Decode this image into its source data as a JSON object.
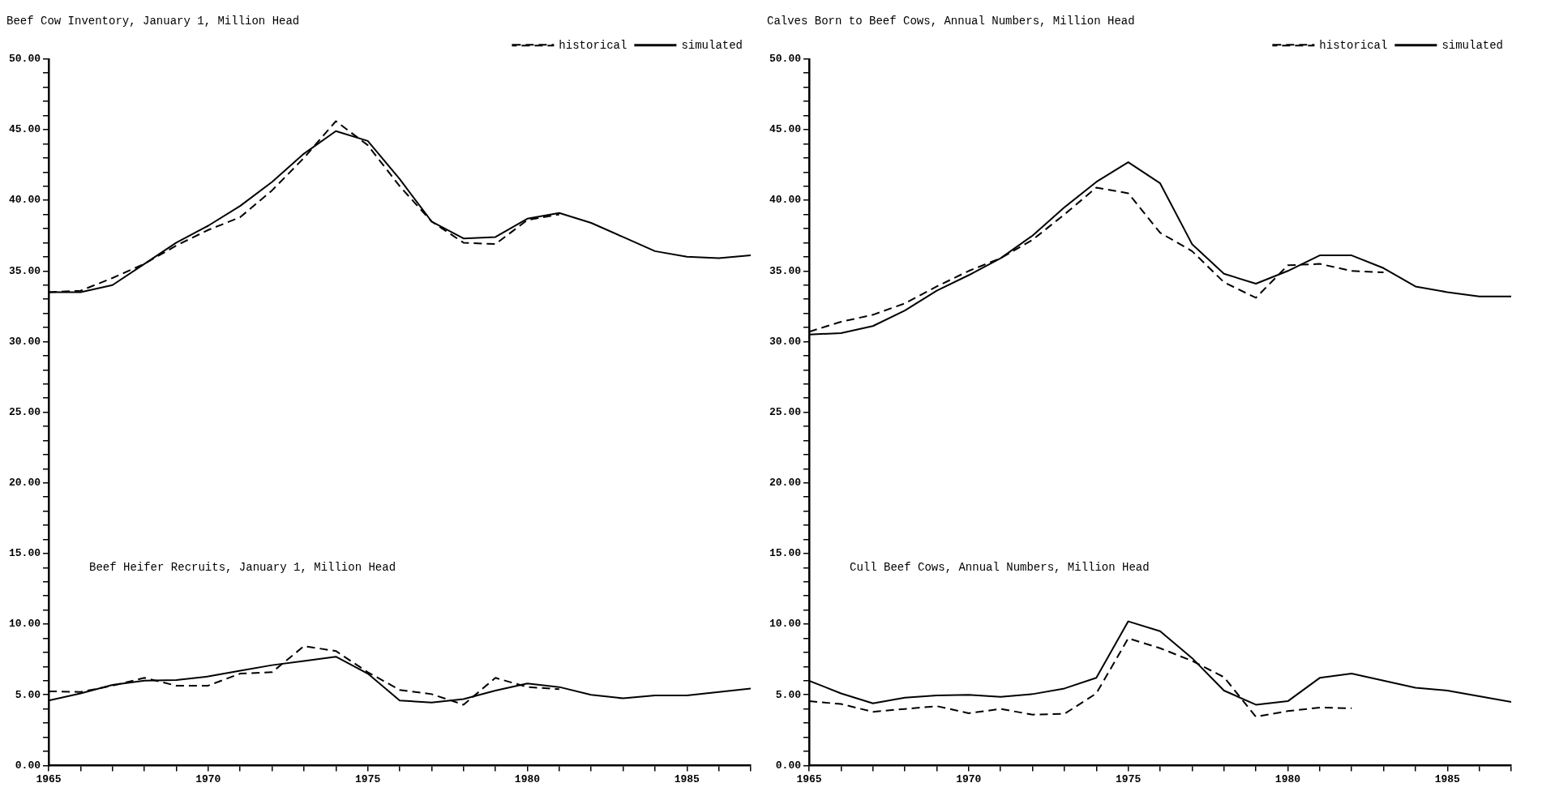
{
  "chart_data": [
    {
      "type": "line",
      "title": "Beef Cow Inventory, January 1, Million Head",
      "annotations": [
        "Beef Heifer Recruits, January 1, Million Head"
      ],
      "x": [
        1965,
        1966,
        1967,
        1968,
        1969,
        1970,
        1971,
        1972,
        1973,
        1974,
        1975,
        1976,
        1977,
        1978,
        1979,
        1980,
        1981,
        1982,
        1983,
        1984,
        1985,
        1986,
        1987
      ],
      "series": [
        {
          "name": "historical",
          "color": "#000000",
          "line_style": "dashed",
          "values": [
            33.5,
            33.6,
            34.5,
            35.5,
            36.8,
            37.9,
            38.8,
            40.7,
            43.0,
            45.6,
            43.9,
            41.0,
            38.5,
            37.0,
            36.9,
            38.6,
            39.0,
            null,
            null,
            null,
            null,
            null,
            null
          ]
        },
        {
          "name": "simulated",
          "color": "#000000",
          "line_style": "solid",
          "values": [
            33.5,
            33.5,
            34.0,
            35.5,
            37.0,
            38.2,
            39.6,
            41.3,
            43.3,
            44.9,
            44.2,
            41.5,
            38.5,
            37.3,
            37.4,
            38.7,
            39.1,
            38.4,
            37.4,
            36.4,
            36.0,
            35.9,
            36.1
          ]
        },
        {
          "color": "#000000",
          "line_style": "dashed",
          "values": [
            5.25,
            5.2,
            5.65,
            6.2,
            5.65,
            5.65,
            6.5,
            6.6,
            8.45,
            8.1,
            6.6,
            5.35,
            5.05,
            4.3,
            6.2,
            5.55,
            5.4,
            null,
            null,
            null,
            null,
            null,
            null
          ]
        },
        {
          "color": "#000000",
          "line_style": "solid",
          "values": [
            4.6,
            5.1,
            5.7,
            6.0,
            6.05,
            6.3,
            6.7,
            7.1,
            7.4,
            7.7,
            6.5,
            4.6,
            4.45,
            4.7,
            5.3,
            5.8,
            5.55,
            5.0,
            4.75,
            4.95,
            4.95,
            5.2,
            5.45
          ]
        }
      ],
      "xlim": [
        1965,
        1987
      ],
      "xticks": [
        1965,
        {
          "value": 1966,
          "label": null
        },
        {
          "value": 1967,
          "label": null
        },
        {
          "value": 1968,
          "label": null
        },
        {
          "value": 1969,
          "label": null
        },
        1970,
        {
          "value": 1971,
          "label": null
        },
        {
          "value": 1972,
          "label": null
        },
        {
          "value": 1973,
          "label": null
        },
        {
          "value": 1974,
          "label": null
        },
        1975,
        {
          "value": 1976,
          "label": null
        },
        {
          "value": 1977,
          "label": null
        },
        {
          "value": 1978,
          "label": null
        },
        {
          "value": 1979,
          "label": null
        },
        1980,
        {
          "value": 1981,
          "label": null
        },
        {
          "value": 1982,
          "label": null
        },
        {
          "value": 1983,
          "label": null
        },
        {
          "value": 1984,
          "label": null
        },
        1985,
        {
          "value": 1986,
          "label": null
        },
        {
          "value": 1987,
          "label": null
        }
      ],
      "ylim": [
        0,
        50
      ],
      "yticks": [
        {
          "value": 0,
          "label": "0.00"
        },
        {
          "value": 1,
          "label": null
        },
        {
          "value": 2,
          "label": null
        },
        {
          "value": 3,
          "label": null
        },
        {
          "value": 4,
          "label": null
        },
        {
          "value": 5,
          "label": "5.00"
        },
        {
          "value": 6,
          "label": null
        },
        {
          "value": 7,
          "label": null
        },
        {
          "value": 8,
          "label": null
        },
        {
          "value": 9,
          "label": null
        },
        {
          "value": 10,
          "label": "10.00"
        },
        {
          "value": 11,
          "label": null
        },
        {
          "value": 12,
          "label": null
        },
        {
          "value": 13,
          "label": null
        },
        {
          "value": 14,
          "label": null
        },
        {
          "value": 15,
          "label": "15.00"
        },
        {
          "value": 16,
          "label": null
        },
        {
          "value": 17,
          "label": null
        },
        {
          "value": 18,
          "label": null
        },
        {
          "value": 19,
          "label": null
        },
        {
          "value": 20,
          "label": "20.00"
        },
        {
          "value": 21,
          "label": null
        },
        {
          "value": 22,
          "label": null
        },
        {
          "value": 23,
          "label": null
        },
        {
          "value": 24,
          "label": null
        },
        {
          "value": 25,
          "label": "25.00"
        },
        {
          "value": 26,
          "label": null
        },
        {
          "value": 27,
          "label": null
        },
        {
          "value": 28,
          "label": null
        },
        {
          "value": 29,
          "label": null
        },
        {
          "value": 30,
          "label": "30.00"
        },
        {
          "value": 31,
          "label": null
        },
        {
          "value": 32,
          "label": null
        },
        {
          "value": 33,
          "label": null
        },
        {
          "value": 34,
          "label": null
        },
        {
          "value": 35,
          "label": "35.00"
        },
        {
          "value": 36,
          "label": null
        },
        {
          "value": 37,
          "label": null
        },
        {
          "value": 38,
          "label": null
        },
        {
          "value": 39,
          "label": null
        },
        {
          "value": 40,
          "label": "40.00"
        },
        {
          "value": 41,
          "label": null
        },
        {
          "value": 42,
          "label": null
        },
        {
          "value": 43,
          "label": null
        },
        {
          "value": 44,
          "label": null
        },
        {
          "value": 45,
          "label": "45.00"
        },
        {
          "value": 46,
          "label": null
        },
        {
          "value": 47,
          "label": null
        },
        {
          "value": 48,
          "label": null
        },
        {
          "value": 49,
          "label": null
        },
        {
          "value": 50,
          "label": "50.00"
        }
      ],
      "legend": "top right",
      "marker": "none"
    },
    {
      "type": "line",
      "title": "Calves Born to Beef Cows, Annual Numbers, Million Head",
      "annotations": [
        "Cull Beef Cows, Annual Numbers, Million Head"
      ],
      "x": [
        1965,
        1966,
        1967,
        1968,
        1969,
        1970,
        1971,
        1972,
        1973,
        1974,
        1975,
        1976,
        1977,
        1978,
        1979,
        1980,
        1981,
        1982,
        1983,
        1984,
        1985,
        1986,
        1987
      ],
      "series": [
        {
          "name": "historical",
          "color": "#000000",
          "line_style": "dashed",
          "values": [
            30.7,
            31.4,
            31.9,
            32.7,
            33.9,
            35.0,
            35.9,
            37.2,
            39.0,
            40.9,
            40.5,
            37.7,
            36.4,
            34.2,
            33.1,
            35.4,
            35.5,
            35.0,
            34.9,
            null,
            null,
            null,
            null
          ]
        },
        {
          "name": "simulated",
          "color": "#000000",
          "line_style": "solid",
          "values": [
            30.5,
            30.6,
            31.1,
            32.2,
            33.6,
            34.7,
            35.9,
            37.5,
            39.5,
            41.3,
            42.7,
            41.2,
            36.9,
            34.8,
            34.1,
            35.0,
            36.1,
            36.1,
            35.2,
            33.9,
            33.5,
            33.2,
            33.2
          ]
        },
        {
          "color": "#000000",
          "line_style": "dashed",
          "values": [
            4.55,
            4.35,
            3.8,
            4.0,
            4.2,
            3.7,
            4.0,
            3.6,
            3.65,
            5.1,
            9.0,
            8.3,
            7.4,
            6.25,
            3.45,
            3.85,
            4.1,
            4.05,
            null,
            null,
            null,
            null,
            null
          ]
        },
        {
          "color": "#000000",
          "line_style": "solid",
          "values": [
            6.0,
            5.1,
            4.4,
            4.8,
            4.95,
            5.0,
            4.85,
            5.05,
            5.45,
            6.2,
            10.2,
            9.5,
            7.6,
            5.3,
            4.3,
            4.55,
            6.2,
            6.5,
            6.0,
            5.5,
            5.3,
            4.9,
            4.5
          ]
        }
      ],
      "xlim": [
        1965,
        1987
      ],
      "xticks": [
        1965,
        {
          "value": 1966,
          "label": null
        },
        {
          "value": 1967,
          "label": null
        },
        {
          "value": 1968,
          "label": null
        },
        {
          "value": 1969,
          "label": null
        },
        1970,
        {
          "value": 1971,
          "label": null
        },
        {
          "value": 1972,
          "label": null
        },
        {
          "value": 1973,
          "label": null
        },
        {
          "value": 1974,
          "label": null
        },
        1975,
        {
          "value": 1976,
          "label": null
        },
        {
          "value": 1977,
          "label": null
        },
        {
          "value": 1978,
          "label": null
        },
        {
          "value": 1979,
          "label": null
        },
        1980,
        {
          "value": 1981,
          "label": null
        },
        {
          "value": 1982,
          "label": null
        },
        {
          "value": 1983,
          "label": null
        },
        {
          "value": 1984,
          "label": null
        },
        1985,
        {
          "value": 1986,
          "label": null
        },
        {
          "value": 1987,
          "label": null
        }
      ],
      "ylim": [
        0,
        50
      ],
      "yticks": [
        {
          "value": 0,
          "label": "0.00"
        },
        {
          "value": 1,
          "label": null
        },
        {
          "value": 2,
          "label": null
        },
        {
          "value": 3,
          "label": null
        },
        {
          "value": 4,
          "label": null
        },
        {
          "value": 5,
          "label": "5.00"
        },
        {
          "value": 6,
          "label": null
        },
        {
          "value": 7,
          "label": null
        },
        {
          "value": 8,
          "label": null
        },
        {
          "value": 9,
          "label": null
        },
        {
          "value": 10,
          "label": "10.00"
        },
        {
          "value": 11,
          "label": null
        },
        {
          "value": 12,
          "label": null
        },
        {
          "value": 13,
          "label": null
        },
        {
          "value": 14,
          "label": null
        },
        {
          "value": 15,
          "label": "15.00"
        },
        {
          "value": 16,
          "label": null
        },
        {
          "value": 17,
          "label": null
        },
        {
          "value": 18,
          "label": null
        },
        {
          "value": 19,
          "label": null
        },
        {
          "value": 20,
          "label": "20.00"
        },
        {
          "value": 21,
          "label": null
        },
        {
          "value": 22,
          "label": null
        },
        {
          "value": 23,
          "label": null
        },
        {
          "value": 24,
          "label": null
        },
        {
          "value": 25,
          "label": "25.00"
        },
        {
          "value": 26,
          "label": null
        },
        {
          "value": 27,
          "label": null
        },
        {
          "value": 28,
          "label": null
        },
        {
          "value": 29,
          "label": null
        },
        {
          "value": 30,
          "label": "30.00"
        },
        {
          "value": 31,
          "label": null
        },
        {
          "value": 32,
          "label": null
        },
        {
          "value": 33,
          "label": null
        },
        {
          "value": 34,
          "label": null
        },
        {
          "value": 35,
          "label": "35.00"
        },
        {
          "value": 36,
          "label": null
        },
        {
          "value": 37,
          "label": null
        },
        {
          "value": 38,
          "label": null
        },
        {
          "value": 39,
          "label": null
        },
        {
          "value": 40,
          "label": "40.00"
        },
        {
          "value": 41,
          "label": null
        },
        {
          "value": 42,
          "label": null
        },
        {
          "value": 43,
          "label": null
        },
        {
          "value": 44,
          "label": null
        },
        {
          "value": 45,
          "label": "45.00"
        },
        {
          "value": 46,
          "label": null
        },
        {
          "value": 47,
          "label": null
        },
        {
          "value": 48,
          "label": null
        },
        {
          "value": 49,
          "label": null
        },
        {
          "value": 50,
          "label": "50.00"
        }
      ],
      "legend": "top right",
      "marker": "none"
    }
  ]
}
